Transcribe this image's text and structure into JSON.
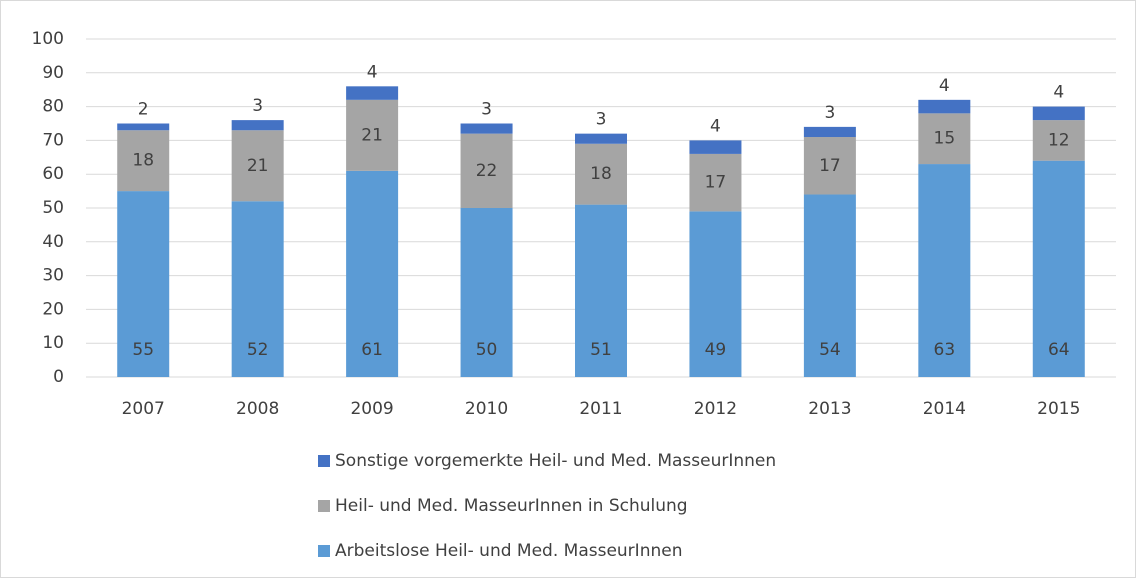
{
  "chart_data": {
    "type": "stacked_bar",
    "categories": [
      "2007",
      "2008",
      "2009",
      "2010",
      "2011",
      "2012",
      "2013",
      "2014",
      "2015"
    ],
    "series": [
      {
        "name": "Arbeitslose Heil- und Med. MasseurInnen",
        "color": "#5b9bd5",
        "values": [
          55,
          52,
          61,
          50,
          51,
          49,
          54,
          63,
          64
        ]
      },
      {
        "name": "Heil- und Med. MasseurInnen in Schulung",
        "color": "#a5a5a5",
        "values": [
          18,
          21,
          21,
          22,
          18,
          17,
          17,
          15,
          12
        ]
      },
      {
        "name": "Sonstige vorgemerkte Heil- und Med. MasseurInnen",
        "color": "#4472c4",
        "values": [
          2,
          3,
          4,
          3,
          3,
          4,
          3,
          4,
          4
        ]
      }
    ],
    "ylim": [
      0,
      100
    ],
    "yticks": [
      0,
      10,
      20,
      30,
      40,
      50,
      60,
      70,
      80,
      90,
      100
    ],
    "grid": true,
    "legend": "bottom"
  }
}
